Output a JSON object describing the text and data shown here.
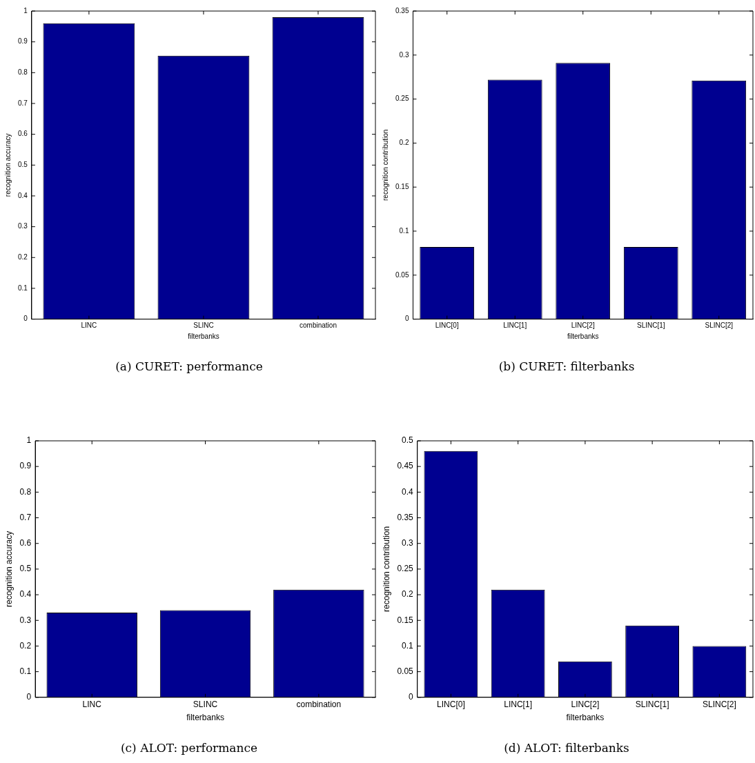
{
  "chart_data": [
    {
      "type": "bar",
      "title": "(a) CURET: performance",
      "xlabel": "filterbanks",
      "ylabel": "recognition accuracy",
      "categories": [
        "LINC",
        "SLINC",
        "combination"
      ],
      "values": [
        0.96,
        0.855,
        0.98
      ],
      "color": "#000090",
      "ylim": [
        0,
        1
      ],
      "yticks": [
        0,
        0.1,
        0.2,
        0.3,
        0.4,
        0.5,
        0.6,
        0.7,
        0.8,
        0.9,
        1
      ],
      "grid": false,
      "legend": false
    },
    {
      "type": "bar",
      "title": "(b) CURET: filterbanks",
      "xlabel": "filterbanks",
      "ylabel": "recognition contribution",
      "categories": [
        "LINC[0]",
        "LINC[1]",
        "LINC[2]",
        "SLINC[1]",
        "SLINC[2]"
      ],
      "values": [
        0.082,
        0.272,
        0.291,
        0.082,
        0.271
      ],
      "color": "#000090",
      "ylim": [
        0,
        0.35
      ],
      "yticks": [
        0,
        0.05,
        0.1,
        0.15,
        0.2,
        0.25,
        0.3,
        0.35
      ],
      "grid": false,
      "legend": false
    },
    {
      "type": "bar",
      "title": "(c) ALOT: performance",
      "xlabel": "filterbanks",
      "ylabel": "recognition accuracy",
      "categories": [
        "LINC",
        "SLINC",
        "combination"
      ],
      "values": [
        0.33,
        0.34,
        0.42
      ],
      "color": "#000090",
      "ylim": [
        0,
        1
      ],
      "yticks": [
        0,
        0.1,
        0.2,
        0.3,
        0.4,
        0.5,
        0.6,
        0.7,
        0.8,
        0.9,
        1
      ],
      "grid": false,
      "legend": false
    },
    {
      "type": "bar",
      "title": "(d) ALOT: filterbanks",
      "xlabel": "filterbanks",
      "ylabel": "recognition contribution",
      "categories": [
        "LINC[0]",
        "LINC[1]",
        "LINC[2]",
        "SLINC[1]",
        "SLINC[2]"
      ],
      "values": [
        0.48,
        0.21,
        0.07,
        0.14,
        0.1
      ],
      "color": "#000090",
      "ylim": [
        0,
        0.5
      ],
      "yticks": [
        0,
        0.05,
        0.1,
        0.15,
        0.2,
        0.25,
        0.3,
        0.35,
        0.4,
        0.45,
        0.5
      ],
      "grid": false,
      "legend": false
    }
  ]
}
